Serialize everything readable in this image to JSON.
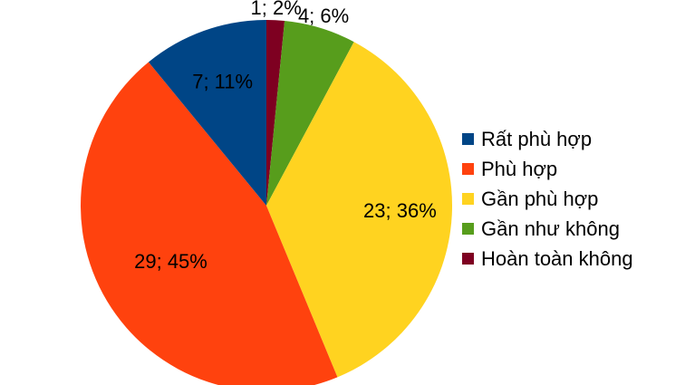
{
  "chart_data": {
    "type": "pie",
    "categories": [
      "Rất phù hợp",
      "Phù hợp",
      "Gần phù hợp",
      "Gần như không",
      "Hoàn toàn không"
    ],
    "values": [
      7,
      29,
      23,
      4,
      1
    ],
    "percentages": [
      11,
      45,
      36,
      6,
      2
    ],
    "data_labels": [
      "7; 11%",
      "29; 45%",
      "23; 36%",
      "4; 6%",
      "1; 2%"
    ],
    "colors": [
      "#004586",
      "#ff420e",
      "#ffd320",
      "#579d1c",
      "#7e0021"
    ],
    "title": "",
    "legend_position": "right",
    "start_angle": "top",
    "direction": "clockwise",
    "slice_order": [
      4,
      3,
      2,
      1,
      0
    ]
  }
}
